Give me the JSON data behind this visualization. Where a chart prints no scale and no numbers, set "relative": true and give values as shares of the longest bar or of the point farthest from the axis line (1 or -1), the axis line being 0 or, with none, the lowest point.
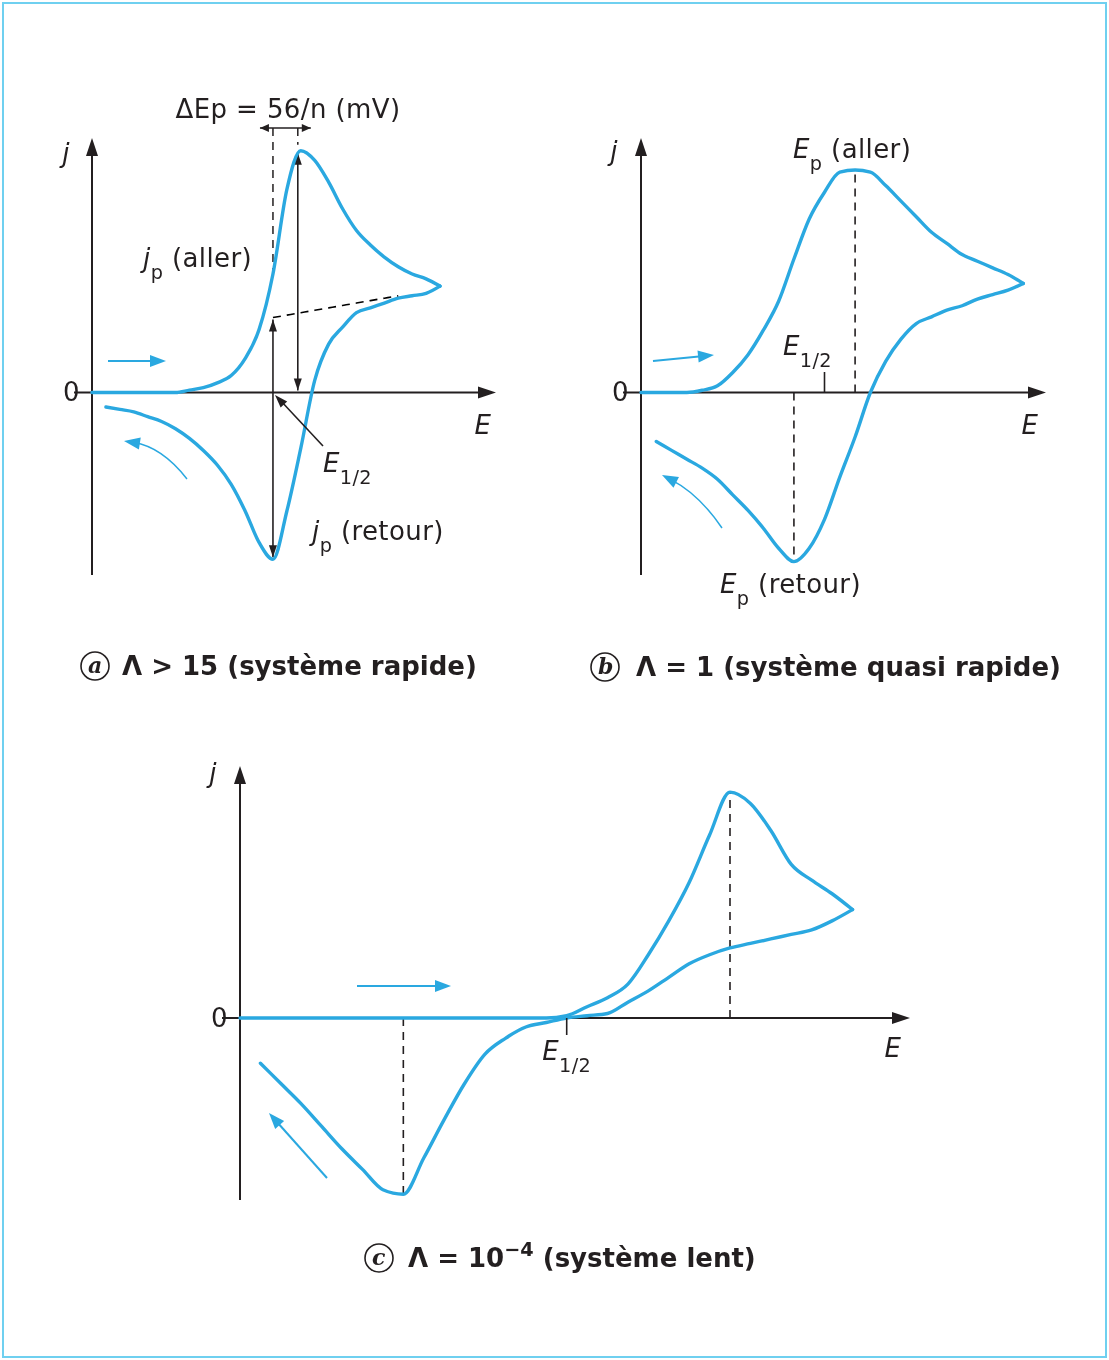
{
  "chart_data": [
    {
      "type": "line",
      "title": "a Λ > 15 (système rapide)",
      "xlabel": "E",
      "ylabel": "j",
      "relative": true,
      "categories": [
        null,
        null,
        null,
        null,
        null,
        null,
        null,
        null,
        null,
        null,
        null,
        null,
        null,
        null,
        null,
        null,
        null,
        null,
        null,
        null,
        null,
        null,
        null,
        null,
        null,
        null
      ],
      "series": [
        {
          "color": "#2aa8e0",
          "values": [
            0,
            0,
            0,
            0,
            0,
            0,
            0,
            0.01,
            0.02,
            0.04,
            0.07,
            0.14,
            0.26,
            0.49,
            0.84,
            1,
            0.96,
            0.87,
            0.76,
            0.67,
            0.61,
            0.56,
            0.52,
            0.49,
            0.47,
            0.44
          ]
        },
        {
          "color": "#2aa8e0",
          "values": [
            null,
            -0.06,
            -0.07,
            -0.08,
            -0.1,
            -0.12,
            -0.15,
            -0.19,
            -0.24,
            -0.3,
            -0.38,
            -0.49,
            -0.62,
            -0.69,
            -0.49,
            -0.23,
            0.05,
            0.2,
            0.27,
            0.33,
            0.35,
            0.37,
            0.39,
            0.4,
            0.41,
            0.44
          ]
        },
        {
          "color": "#000000",
          "line_style": "dashed",
          "values": [
            null,
            null,
            null,
            null,
            null,
            null,
            null,
            null,
            null,
            null,
            null,
            null,
            null,
            0.31,
            0.32,
            0.33,
            0.34,
            0.35,
            0.36,
            0.37,
            0.38,
            0.39,
            0.4,
            null,
            null,
            null
          ]
        }
      ],
      "annotations": [
        "ΔEp = 56/n (mV)",
        "j$_{p}$ (aller)",
        "E$_{1/2}$",
        "j$_{p}$ (retour)",
        "0"
      ]
    },
    {
      "type": "line",
      "title": "b Λ = 1 (système quasi rapide)",
      "xlabel": "E",
      "ylabel": "j",
      "relative": true,
      "categories": [
        null,
        null,
        null,
        null,
        null,
        null,
        null,
        null,
        null,
        null,
        null,
        null,
        null,
        null,
        null,
        null,
        null,
        null,
        null,
        null,
        null,
        null,
        null,
        null,
        null,
        null
      ],
      "series": [
        {
          "color": "#2aa8e0",
          "values": [
            0,
            0,
            0,
            0,
            0.01,
            0.03,
            0.09,
            0.17,
            0.28,
            0.41,
            0.6,
            0.78,
            0.9,
            0.99,
            1,
            0.99,
            0.93,
            0.86,
            0.79,
            0.72,
            0.67,
            0.62,
            0.59,
            0.56,
            0.53,
            0.49
          ]
        },
        {
          "color": "#2aa8e0",
          "values": [
            null,
            -0.22,
            -0.26,
            -0.3,
            -0.34,
            -0.39,
            -0.46,
            -0.53,
            -0.61,
            -0.7,
            -0.76,
            -0.7,
            -0.57,
            -0.38,
            -0.2,
            0,
            0.14,
            0.24,
            0.31,
            0.34,
            0.37,
            0.39,
            0.42,
            0.44,
            0.46,
            0.49
          ]
        }
      ],
      "annotations": [
        "E$_{p}$ (aller)",
        "E$_{1/2}$",
        "E$_{p}$ (retour)",
        "0"
      ]
    },
    {
      "type": "line",
      "title": "c Λ = 10$^{−4}$ (système lent)",
      "xlabel": "E",
      "ylabel": "j",
      "relative": true,
      "categories": [
        null,
        null,
        null,
        null,
        null,
        null,
        null,
        null,
        null,
        null,
        null,
        null,
        null,
        null,
        null,
        null,
        null,
        null,
        null,
        null,
        null,
        null,
        null,
        null,
        null,
        null,
        null,
        null,
        null,
        null,
        null
      ],
      "series": [
        {
          "color": "#2aa8e0",
          "values": [
            0,
            0,
            0,
            0,
            0,
            0,
            0,
            0,
            0,
            0,
            0,
            0,
            0,
            0,
            0,
            0,
            0.01,
            0.05,
            0.09,
            0.15,
            0.28,
            0.43,
            0.6,
            0.81,
            1,
            0.95,
            0.83,
            0.68,
            0.61,
            0.55,
            0.48
          ]
        },
        {
          "color": "#2aa8e0",
          "values": [
            null,
            -0.2,
            -0.29,
            -0.38,
            -0.48,
            -0.58,
            -0.67,
            -0.76,
            -0.78,
            -0.62,
            -0.45,
            -0.29,
            -0.16,
            -0.09,
            -0.04,
            -0.02,
            0,
            0.01,
            0.02,
            0.07,
            0.12,
            0.18,
            0.24,
            0.28,
            0.31,
            0.33,
            0.35,
            0.37,
            0.39,
            0.43,
            0.48
          ]
        }
      ],
      "annotations": [
        "E$_{1/2}$",
        "0"
      ]
    }
  ]
}
